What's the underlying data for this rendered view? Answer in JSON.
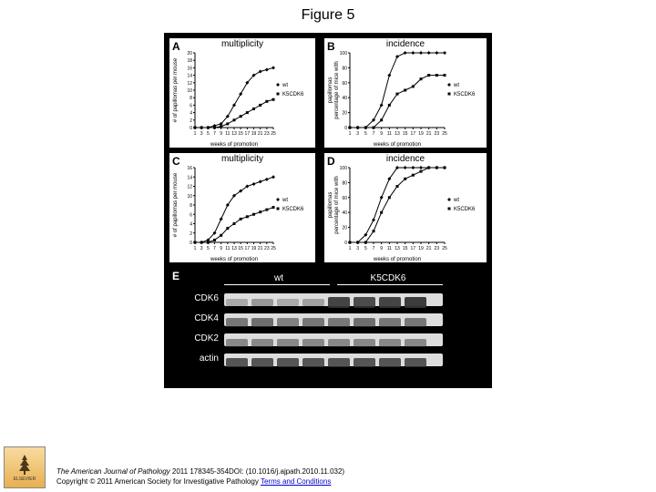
{
  "title": "Figure 5",
  "panels": {
    "A": {
      "label": "A",
      "title": "multiplicity",
      "xlabel": "weeks of promotion",
      "ylabel": "# of papillomas per mouse",
      "xticks": [
        1,
        3,
        5,
        7,
        9,
        11,
        13,
        15,
        17,
        19,
        21,
        23,
        25
      ],
      "yticks": [
        0,
        2,
        4,
        6,
        8,
        10,
        12,
        14,
        16,
        18,
        20
      ],
      "series": [
        {
          "name": "wt",
          "marker": "diamond",
          "color": "#000",
          "data": [
            [
              1,
              0
            ],
            [
              3,
              0
            ],
            [
              5,
              0
            ],
            [
              7,
              0.5
            ],
            [
              9,
              1
            ],
            [
              11,
              3
            ],
            [
              13,
              6
            ],
            [
              15,
              9
            ],
            [
              17,
              12
            ],
            [
              19,
              14
            ],
            [
              21,
              15
            ],
            [
              23,
              15.5
            ],
            [
              25,
              16
            ]
          ]
        },
        {
          "name": "K5CDK6",
          "marker": "square",
          "color": "#000",
          "data": [
            [
              1,
              0
            ],
            [
              3,
              0
            ],
            [
              5,
              0
            ],
            [
              7,
              0
            ],
            [
              9,
              0.3
            ],
            [
              11,
              1
            ],
            [
              13,
              2
            ],
            [
              15,
              3
            ],
            [
              17,
              4
            ],
            [
              19,
              5
            ],
            [
              21,
              6
            ],
            [
              23,
              7
            ],
            [
              25,
              7.5
            ]
          ]
        }
      ],
      "legend": [
        "wt",
        "K5CDK6"
      ]
    },
    "B": {
      "label": "B",
      "title": "incidence",
      "xlabel": "weeks of promotion",
      "ylabel": "percentage of mice with\npapillomas",
      "xticks": [
        1,
        3,
        5,
        7,
        9,
        11,
        13,
        15,
        17,
        19,
        21,
        23,
        25
      ],
      "yticks": [
        0,
        20,
        40,
        60,
        80,
        100
      ],
      "series": [
        {
          "name": "wt",
          "marker": "diamond",
          "color": "#000",
          "data": [
            [
              1,
              0
            ],
            [
              3,
              0
            ],
            [
              5,
              0
            ],
            [
              7,
              10
            ],
            [
              9,
              30
            ],
            [
              11,
              70
            ],
            [
              13,
              95
            ],
            [
              15,
              100
            ],
            [
              17,
              100
            ],
            [
              19,
              100
            ],
            [
              21,
              100
            ],
            [
              23,
              100
            ],
            [
              25,
              100
            ]
          ]
        },
        {
          "name": "K5CDK6",
          "marker": "square",
          "color": "#000",
          "data": [
            [
              1,
              0
            ],
            [
              3,
              0
            ],
            [
              5,
              0
            ],
            [
              7,
              0
            ],
            [
              9,
              10
            ],
            [
              11,
              30
            ],
            [
              13,
              45
            ],
            [
              15,
              50
            ],
            [
              17,
              55
            ],
            [
              19,
              65
            ],
            [
              21,
              70
            ],
            [
              23,
              70
            ],
            [
              25,
              70
            ]
          ]
        }
      ],
      "legend": [
        "wt",
        "K5CDK6"
      ]
    },
    "C": {
      "label": "C",
      "title": "multiplicity",
      "xlabel": "weeks of promotion",
      "ylabel": "# of papillomas per mouse",
      "xticks": [
        1,
        3,
        5,
        7,
        9,
        11,
        13,
        15,
        17,
        19,
        21,
        23,
        25
      ],
      "yticks": [
        0,
        2,
        4,
        6,
        8,
        10,
        12,
        14,
        16
      ],
      "series": [
        {
          "name": "wt",
          "marker": "diamond",
          "color": "#000",
          "data": [
            [
              1,
              0
            ],
            [
              3,
              0
            ],
            [
              5,
              0.5
            ],
            [
              7,
              2
            ],
            [
              9,
              5
            ],
            [
              11,
              8
            ],
            [
              13,
              10
            ],
            [
              15,
              11
            ],
            [
              17,
              12
            ],
            [
              19,
              12.5
            ],
            [
              21,
              13
            ],
            [
              23,
              13.5
            ],
            [
              25,
              14
            ]
          ]
        },
        {
          "name": "K5CDK6",
          "marker": "square",
          "color": "#000",
          "data": [
            [
              1,
              0
            ],
            [
              3,
              0
            ],
            [
              5,
              0
            ],
            [
              7,
              0.5
            ],
            [
              9,
              1.5
            ],
            [
              11,
              3
            ],
            [
              13,
              4
            ],
            [
              15,
              5
            ],
            [
              17,
              5.5
            ],
            [
              19,
              6
            ],
            [
              21,
              6.5
            ],
            [
              23,
              7
            ],
            [
              25,
              7.5
            ]
          ]
        }
      ],
      "legend": [
        "wt",
        "K5CDK6"
      ]
    },
    "D": {
      "label": "D",
      "title": "incidence",
      "xlabel": "weeks of promotion",
      "ylabel": "percentage of mice with\npapillomas",
      "xticks": [
        1,
        3,
        5,
        7,
        9,
        11,
        13,
        15,
        17,
        19,
        21,
        23,
        25
      ],
      "yticks": [
        0,
        20,
        40,
        60,
        80,
        100
      ],
      "series": [
        {
          "name": "wt",
          "marker": "diamond",
          "color": "#000",
          "data": [
            [
              1,
              0
            ],
            [
              3,
              0
            ],
            [
              5,
              10
            ],
            [
              7,
              30
            ],
            [
              9,
              60
            ],
            [
              11,
              85
            ],
            [
              13,
              100
            ],
            [
              15,
              100
            ],
            [
              17,
              100
            ],
            [
              19,
              100
            ],
            [
              21,
              100
            ],
            [
              23,
              100
            ],
            [
              25,
              100
            ]
          ]
        },
        {
          "name": "K5CDK6",
          "marker": "square",
          "color": "#000",
          "data": [
            [
              1,
              0
            ],
            [
              3,
              0
            ],
            [
              5,
              0
            ],
            [
              7,
              15
            ],
            [
              9,
              40
            ],
            [
              11,
              60
            ],
            [
              13,
              75
            ],
            [
              15,
              85
            ],
            [
              17,
              90
            ],
            [
              19,
              95
            ],
            [
              21,
              100
            ],
            [
              23,
              100
            ],
            [
              25,
              100
            ]
          ]
        }
      ],
      "legend": [
        "wt",
        "K5CDK6"
      ]
    },
    "E": {
      "label": "E",
      "groups": [
        "wt",
        "K5CDK6"
      ],
      "rows": [
        {
          "label": "CDK6",
          "intensities": [
            0.3,
            0.4,
            0.3,
            0.35,
            0.9,
            0.85,
            0.9,
            0.95
          ]
        },
        {
          "label": "CDK4",
          "intensities": [
            0.6,
            0.65,
            0.55,
            0.6,
            0.6,
            0.65,
            0.6,
            0.6
          ]
        },
        {
          "label": "CDK2",
          "intensities": [
            0.5,
            0.5,
            0.5,
            0.5,
            0.5,
            0.5,
            0.5,
            0.5
          ]
        },
        {
          "label": "actin",
          "intensities": [
            0.8,
            0.8,
            0.8,
            0.8,
            0.8,
            0.8,
            0.8,
            0.8
          ]
        }
      ]
    }
  },
  "footer": {
    "journal": "The American Journal of Pathology",
    "citation": " 2011 178345-354DOI: (10.1016/j.ajpath.2010.11.032)",
    "copyright": "Copyright © 2011 American Society for Investigative Pathology ",
    "terms": "Terms and Conditions"
  },
  "logo_text": "ELSEVIER",
  "colors": {
    "background": "#ffffff",
    "figure_bg": "#000000",
    "panel_bg": "#ffffff",
    "line": "#000000",
    "gel_bg": "#dddddd",
    "band": "#333333"
  }
}
